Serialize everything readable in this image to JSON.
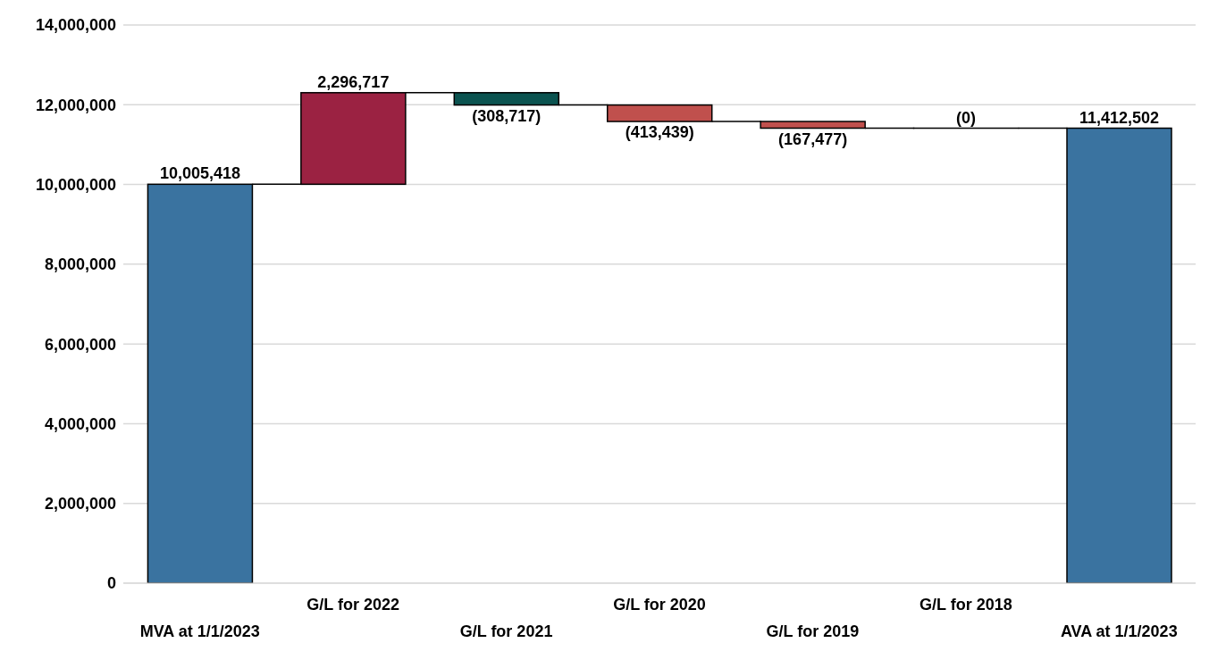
{
  "chart_data": {
    "type": "bar",
    "categories": [
      "MVA at 1/1/2023",
      "G/L for 2022",
      "G/L for 2021",
      "G/L for 2020",
      "G/L for 2019",
      "G/L for 2018",
      "AVA at 1/1/2023"
    ],
    "values": [
      10005418,
      2296717,
      -308717,
      -413439,
      -167477,
      0,
      11412502
    ],
    "base": [
      0,
      10005418,
      12302135,
      11993418,
      11579979,
      11412502,
      0
    ],
    "colors": [
      "#3a73a0",
      "#9b2242",
      "#0b5350",
      "#c0504d",
      "#c0504d",
      "#c0504d",
      "#3a73a0"
    ],
    "value_labels": [
      "10,005,418",
      "2,296,717",
      "(308,717)",
      "(413,439)",
      "(167,477)",
      "(0)",
      "11,412,502"
    ],
    "ylim": [
      0,
      14000000
    ],
    "yticks": [
      0,
      {
        "value": 2000000,
        "label": "2,000,000"
      },
      {
        "value": 4000000,
        "label": "4,000,000"
      },
      {
        "value": 6000000,
        "label": "6,000,000"
      },
      {
        "value": 8000000,
        "label": "8,000,000"
      },
      {
        "value": 10000000,
        "label": "10,000,000"
      },
      {
        "value": 12000000,
        "label": "12,000,000"
      },
      {
        "value": 14000000,
        "label": "14,000,000"
      }
    ],
    "grid": "y",
    "legend": false
  }
}
